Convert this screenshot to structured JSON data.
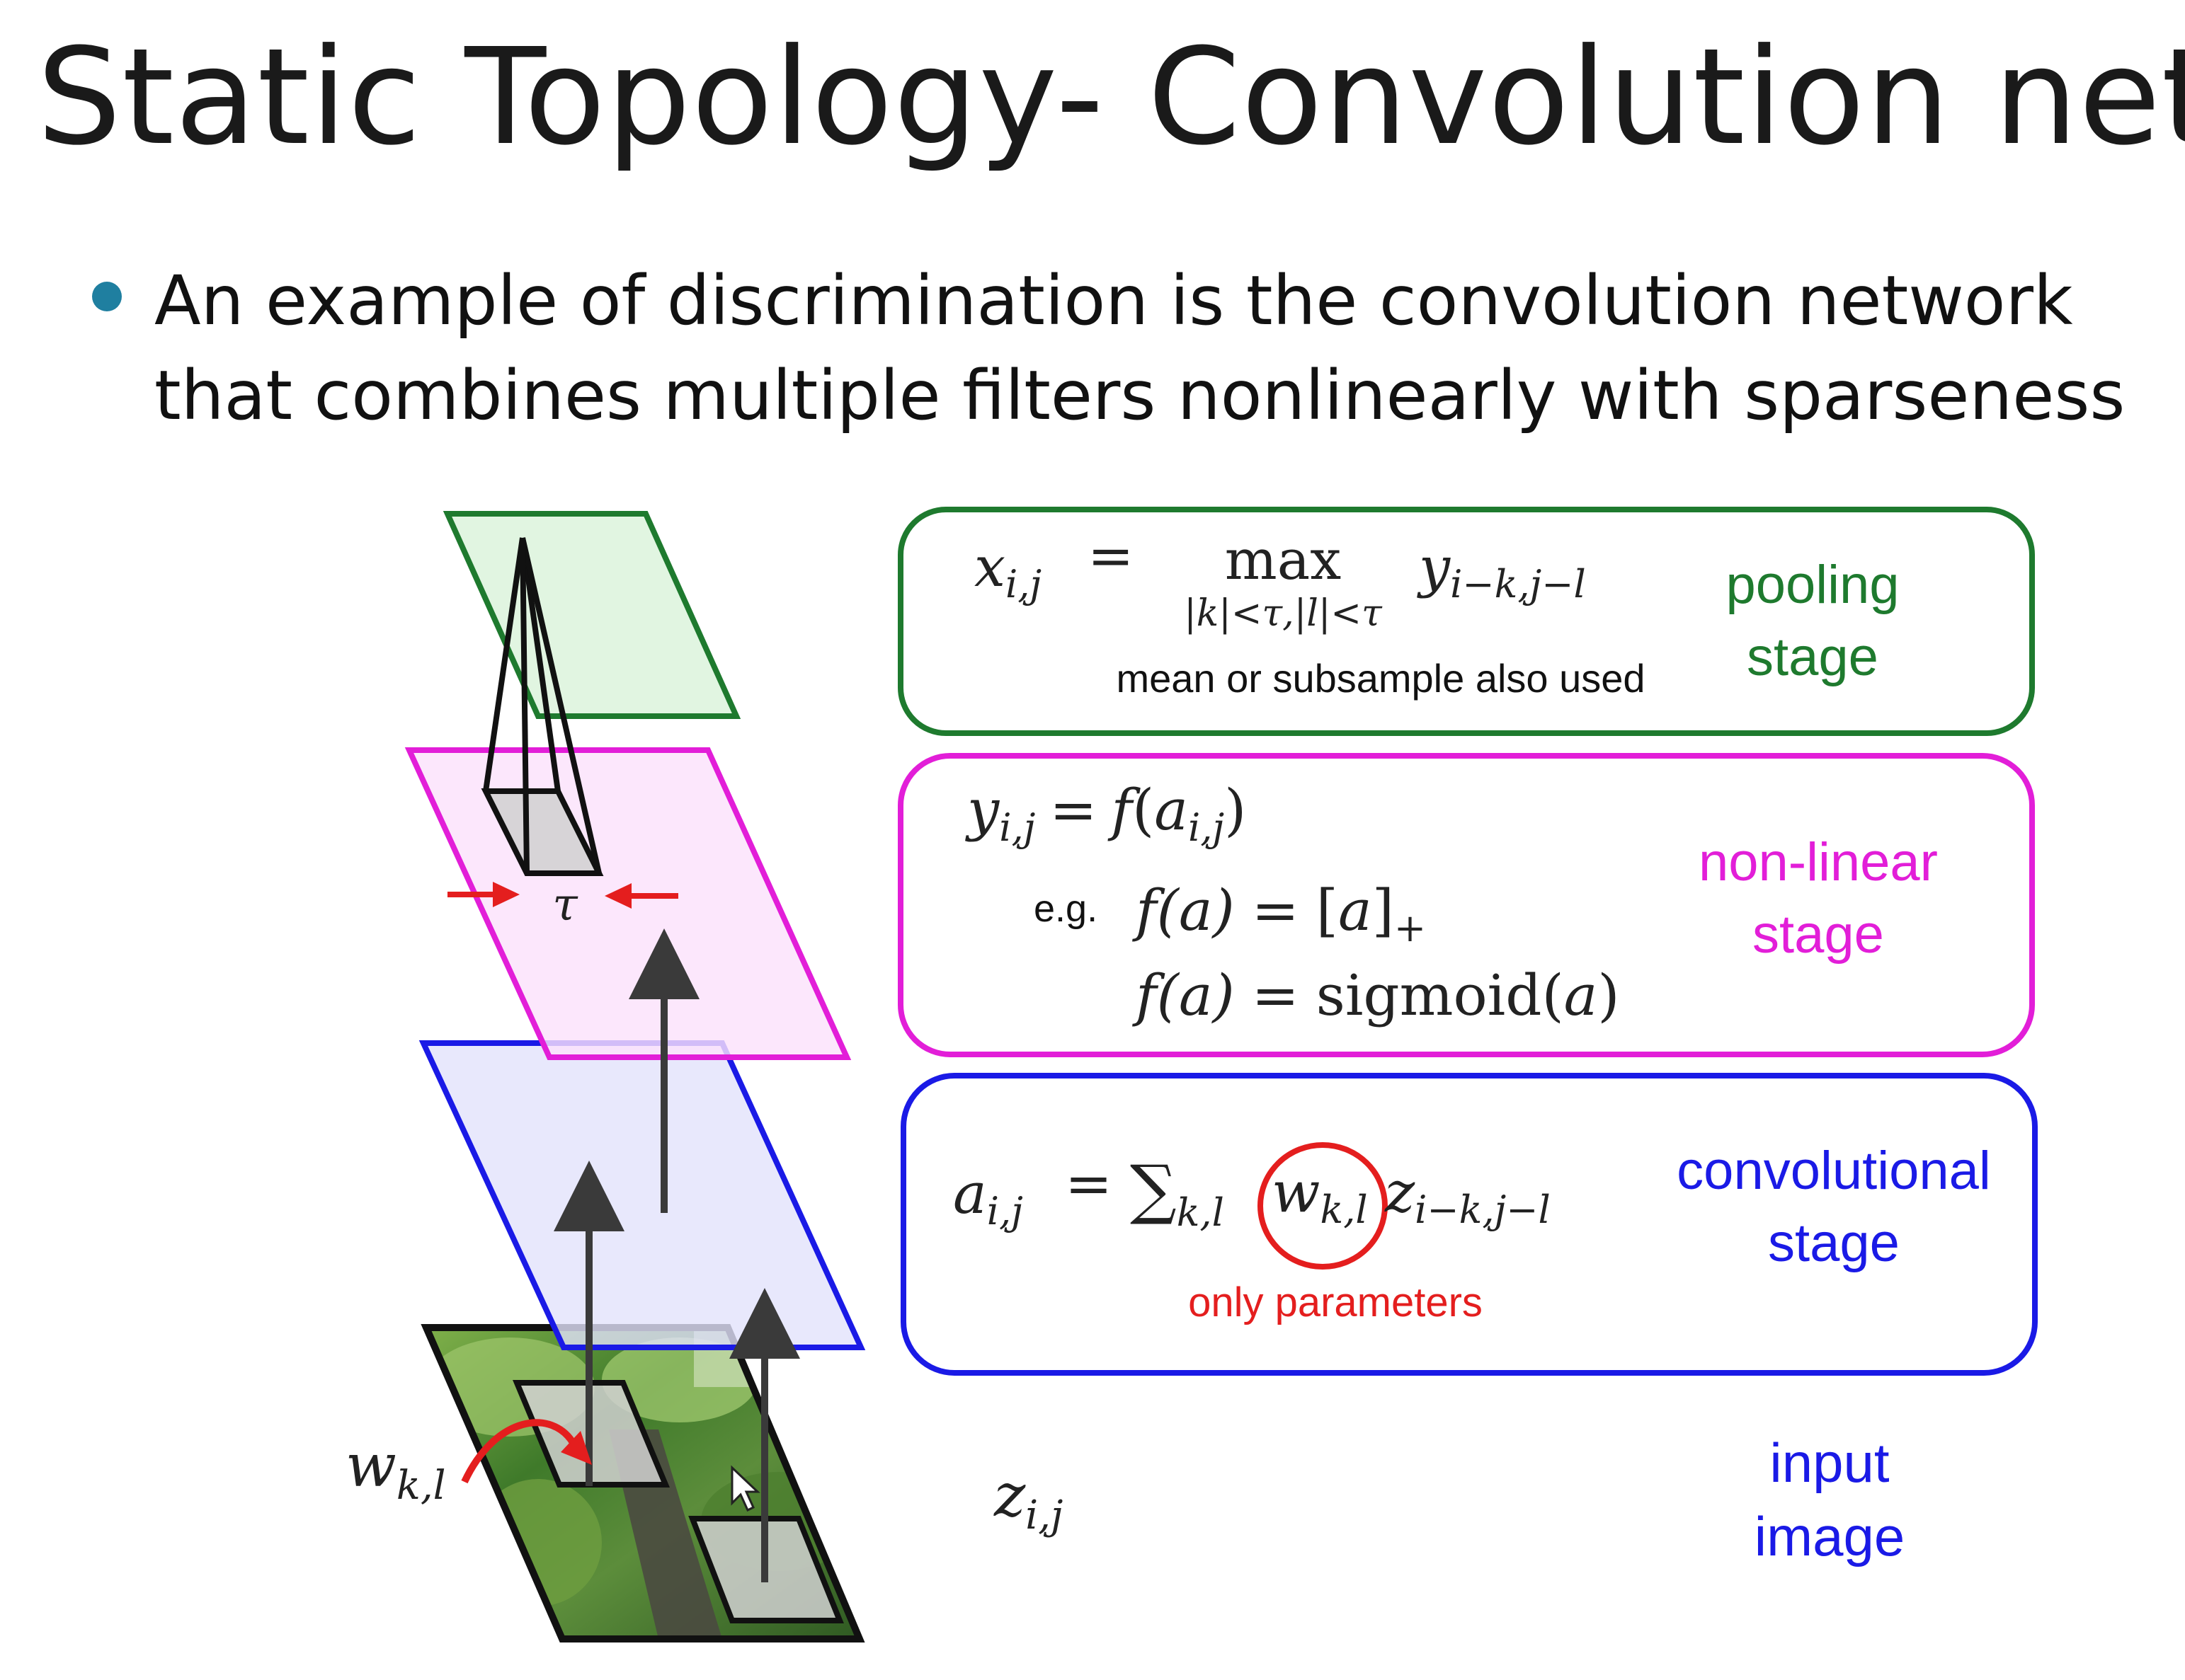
{
  "slide": {
    "title": "Static Topology- Convolution nets",
    "bullet": "An example of discrimination is the convolution network that combines multiple filters nonlinearly with sparseness"
  },
  "stages": {
    "pooling": {
      "label_line1": "pooling",
      "label_line2": "stage",
      "formula_lhs": "x",
      "formula_lhs_sub": "i,j",
      "formula_eq": "=",
      "formula_max": "max",
      "formula_max_sub": "|k|<τ,|l|<τ",
      "formula_rhs": "y",
      "formula_rhs_sub": "i−k,j−l",
      "note": "mean or subsample also used",
      "color": "#1e7a2e"
    },
    "nonlinear": {
      "label_line1": "non-linear",
      "label_line2": "stage",
      "formula1_lhs": "y",
      "formula1_lhs_sub": "i,j",
      "formula1_eq": "=",
      "formula1_f": "f",
      "formula1_open": "(",
      "formula1_a": "a",
      "formula1_a_sub": "i,j",
      "formula1_close": ")",
      "eg": "e.g.",
      "formula2_f": "f",
      "formula2_arg": "(a)",
      "formula2_eq": "=",
      "formula2_open": "[",
      "formula2_a": "a",
      "formula2_close": "]",
      "formula2_plus": "+",
      "formula3_f": "f",
      "formula3_arg": "(a)",
      "formula3_eq": "=",
      "formula3_rhs": "sigmoid(",
      "formula3_a": "a",
      "formula3_close": ")",
      "color": "#e21ed8"
    },
    "convolutional": {
      "label_line1": "convolutional",
      "label_line2": "stage",
      "formula_lhs": "a",
      "formula_lhs_sub": "i,j",
      "formula_eq": "=",
      "formula_sum": "∑",
      "formula_sum_sub": "k,l",
      "formula_w": "w",
      "formula_w_sub": "k,l",
      "formula_z": "z",
      "formula_z_sub": "i−k,j−l",
      "note": "only parameters",
      "color": "#1a1ae6",
      "note_color": "#e41e1e"
    },
    "input": {
      "label_line1": "input",
      "label_line2": "image",
      "symbol": "z",
      "symbol_sub": "i,j",
      "color": "#1a1ae6"
    }
  },
  "figure": {
    "tau": "τ",
    "weight": "w",
    "weight_sub": "k,l",
    "arrow_color": "#e41e1e",
    "pooling_plane_color": "#1e7a2e",
    "nonlinear_plane_color": "#e21ed8",
    "conv_plane_color": "#1a1ae6"
  }
}
